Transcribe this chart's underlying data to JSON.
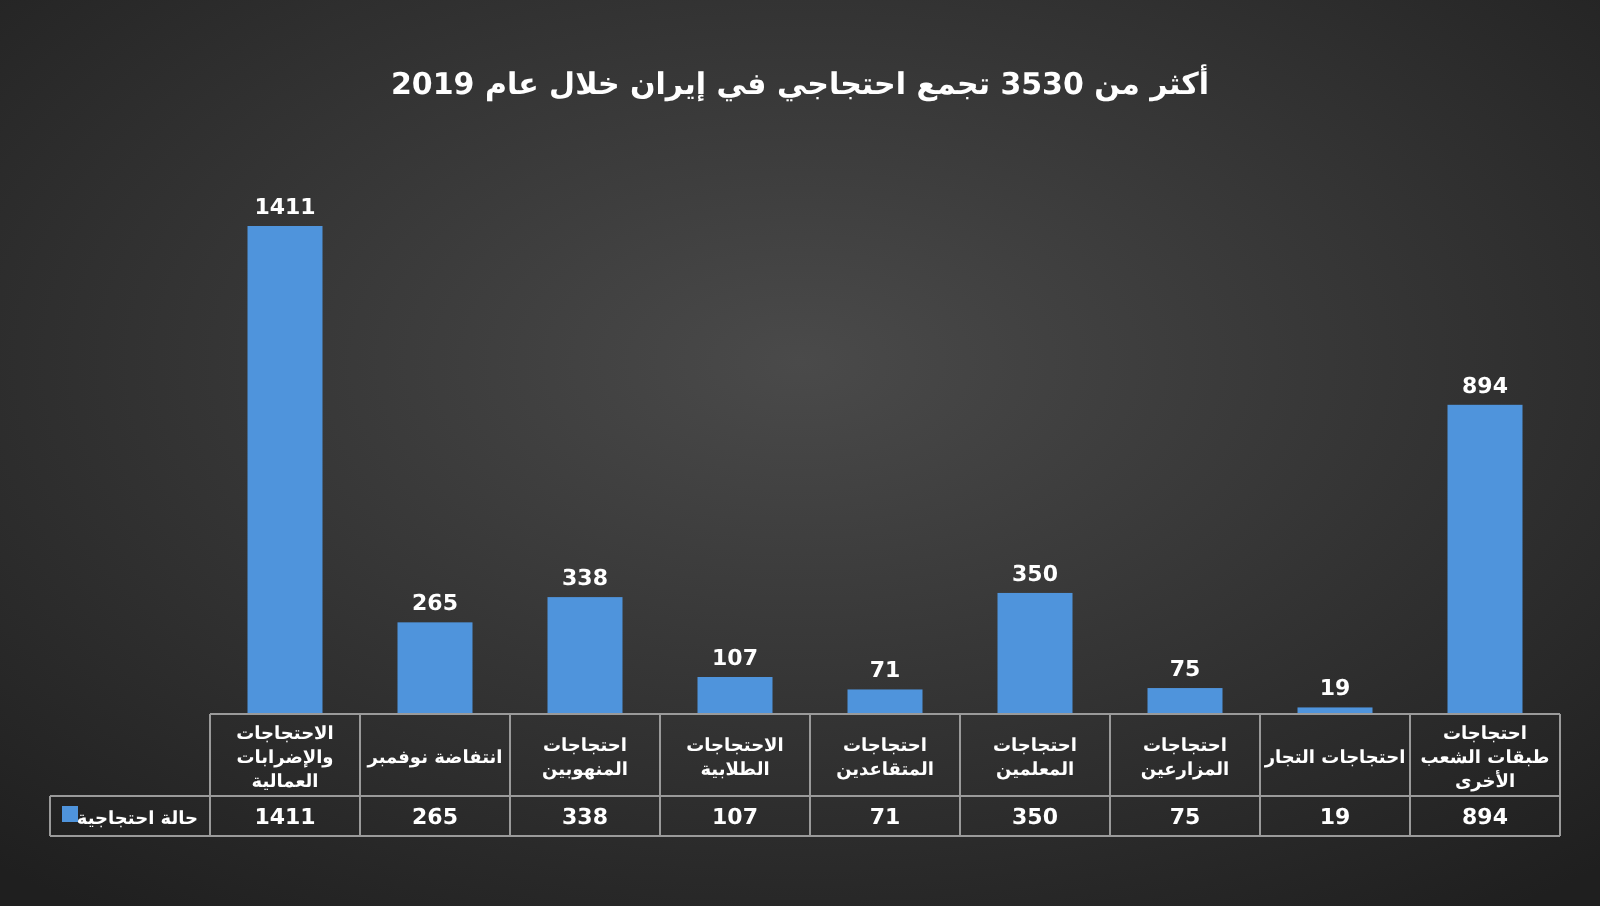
{
  "chart_data": {
    "type": "bar",
    "title": "أكثر من 3530 تجمع احتجاجي في إيران خلال عام 2019",
    "categories": [
      "الاحتجاجات والإضرابات العمالية",
      "انتفاضة نوفمبر",
      "احتجاجات المنهوبين",
      "الاحتجاجات الطلابية",
      "احتجاجات المتقاعدين",
      "احتجاجات المعلمين",
      "احتجاجات المزارعين",
      "احتجاجات التجار",
      "احتجاجات طبقات الشعب الأخرى"
    ],
    "series": [
      {
        "name": "حالة احتجاجية",
        "color": "#4f94dc",
        "values": [
          1411,
          265,
          338,
          107,
          71,
          350,
          75,
          19,
          894
        ]
      }
    ],
    "annotations": [
      "1411",
      "265",
      "338",
      "107",
      "71",
      "350",
      "75",
      "19",
      "894"
    ],
    "data_labels": true,
    "legend": "bottom left"
  }
}
